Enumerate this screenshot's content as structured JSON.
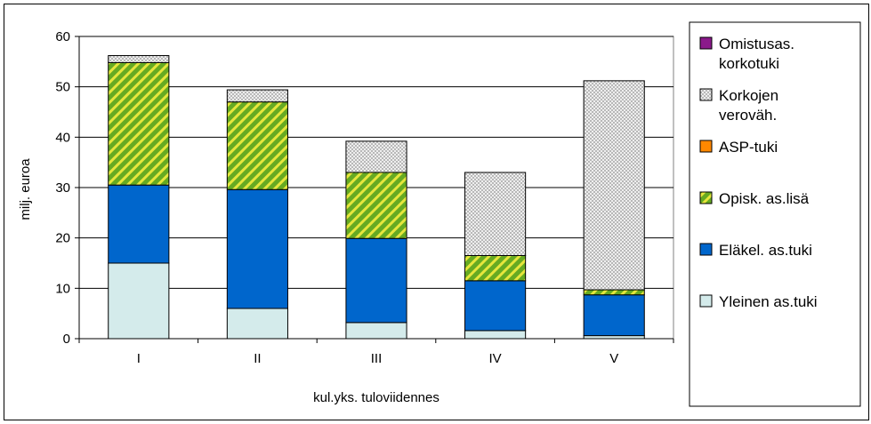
{
  "chart_data": {
    "type": "bar",
    "stacked": true,
    "categories": [
      "I",
      "II",
      "III",
      "IV",
      "V"
    ],
    "xlabel": "kul.yks. tuloviidennes",
    "ylabel": "milj. euroa",
    "ylim": [
      0,
      60
    ],
    "yticks": [
      0,
      10,
      20,
      30,
      40,
      50,
      60
    ],
    "grid": true,
    "legend_position": "right",
    "series": [
      {
        "name": "Yleinen as.tuki",
        "values": [
          15,
          6,
          3.2,
          1.6,
          0.6
        ],
        "color": "#d4ebeb",
        "pattern": "solid"
      },
      {
        "name": "Eläkel. as.tuki",
        "values": [
          15.5,
          23.6,
          16.7,
          9.9,
          8.1
        ],
        "color": "#0066cc",
        "pattern": "solid"
      },
      {
        "name": "Opisk. as.lisä",
        "values": [
          24.3,
          17.4,
          13.1,
          5.0,
          1.0
        ],
        "color": "#66aa22",
        "pattern": "diagonal"
      },
      {
        "name": "ASP-tuki",
        "values": [
          0,
          0,
          0,
          0,
          0
        ],
        "color": "#ff8800",
        "pattern": "solid"
      },
      {
        "name": "Korkojen verovah.",
        "label_lines": [
          "Korkojen",
          "veroväh."
        ],
        "values": [
          1.4,
          2.4,
          6.2,
          16.5,
          41.5
        ],
        "color": "#c4c4c4",
        "pattern": "checker"
      },
      {
        "name": "Omistusas. korkotuki",
        "label_lines": [
          "Omistusas.",
          "korkotuki"
        ],
        "values": [
          0,
          0,
          0,
          0,
          0
        ],
        "color": "#8b1a8b",
        "pattern": "solid"
      }
    ],
    "legend_order": [
      "Omistusas. korkotuki",
      "Korkojen verovah.",
      "ASP-tuki",
      "Opisk. as.lisä",
      "Eläkel. as.tuki",
      "Yleinen as.tuki"
    ]
  }
}
